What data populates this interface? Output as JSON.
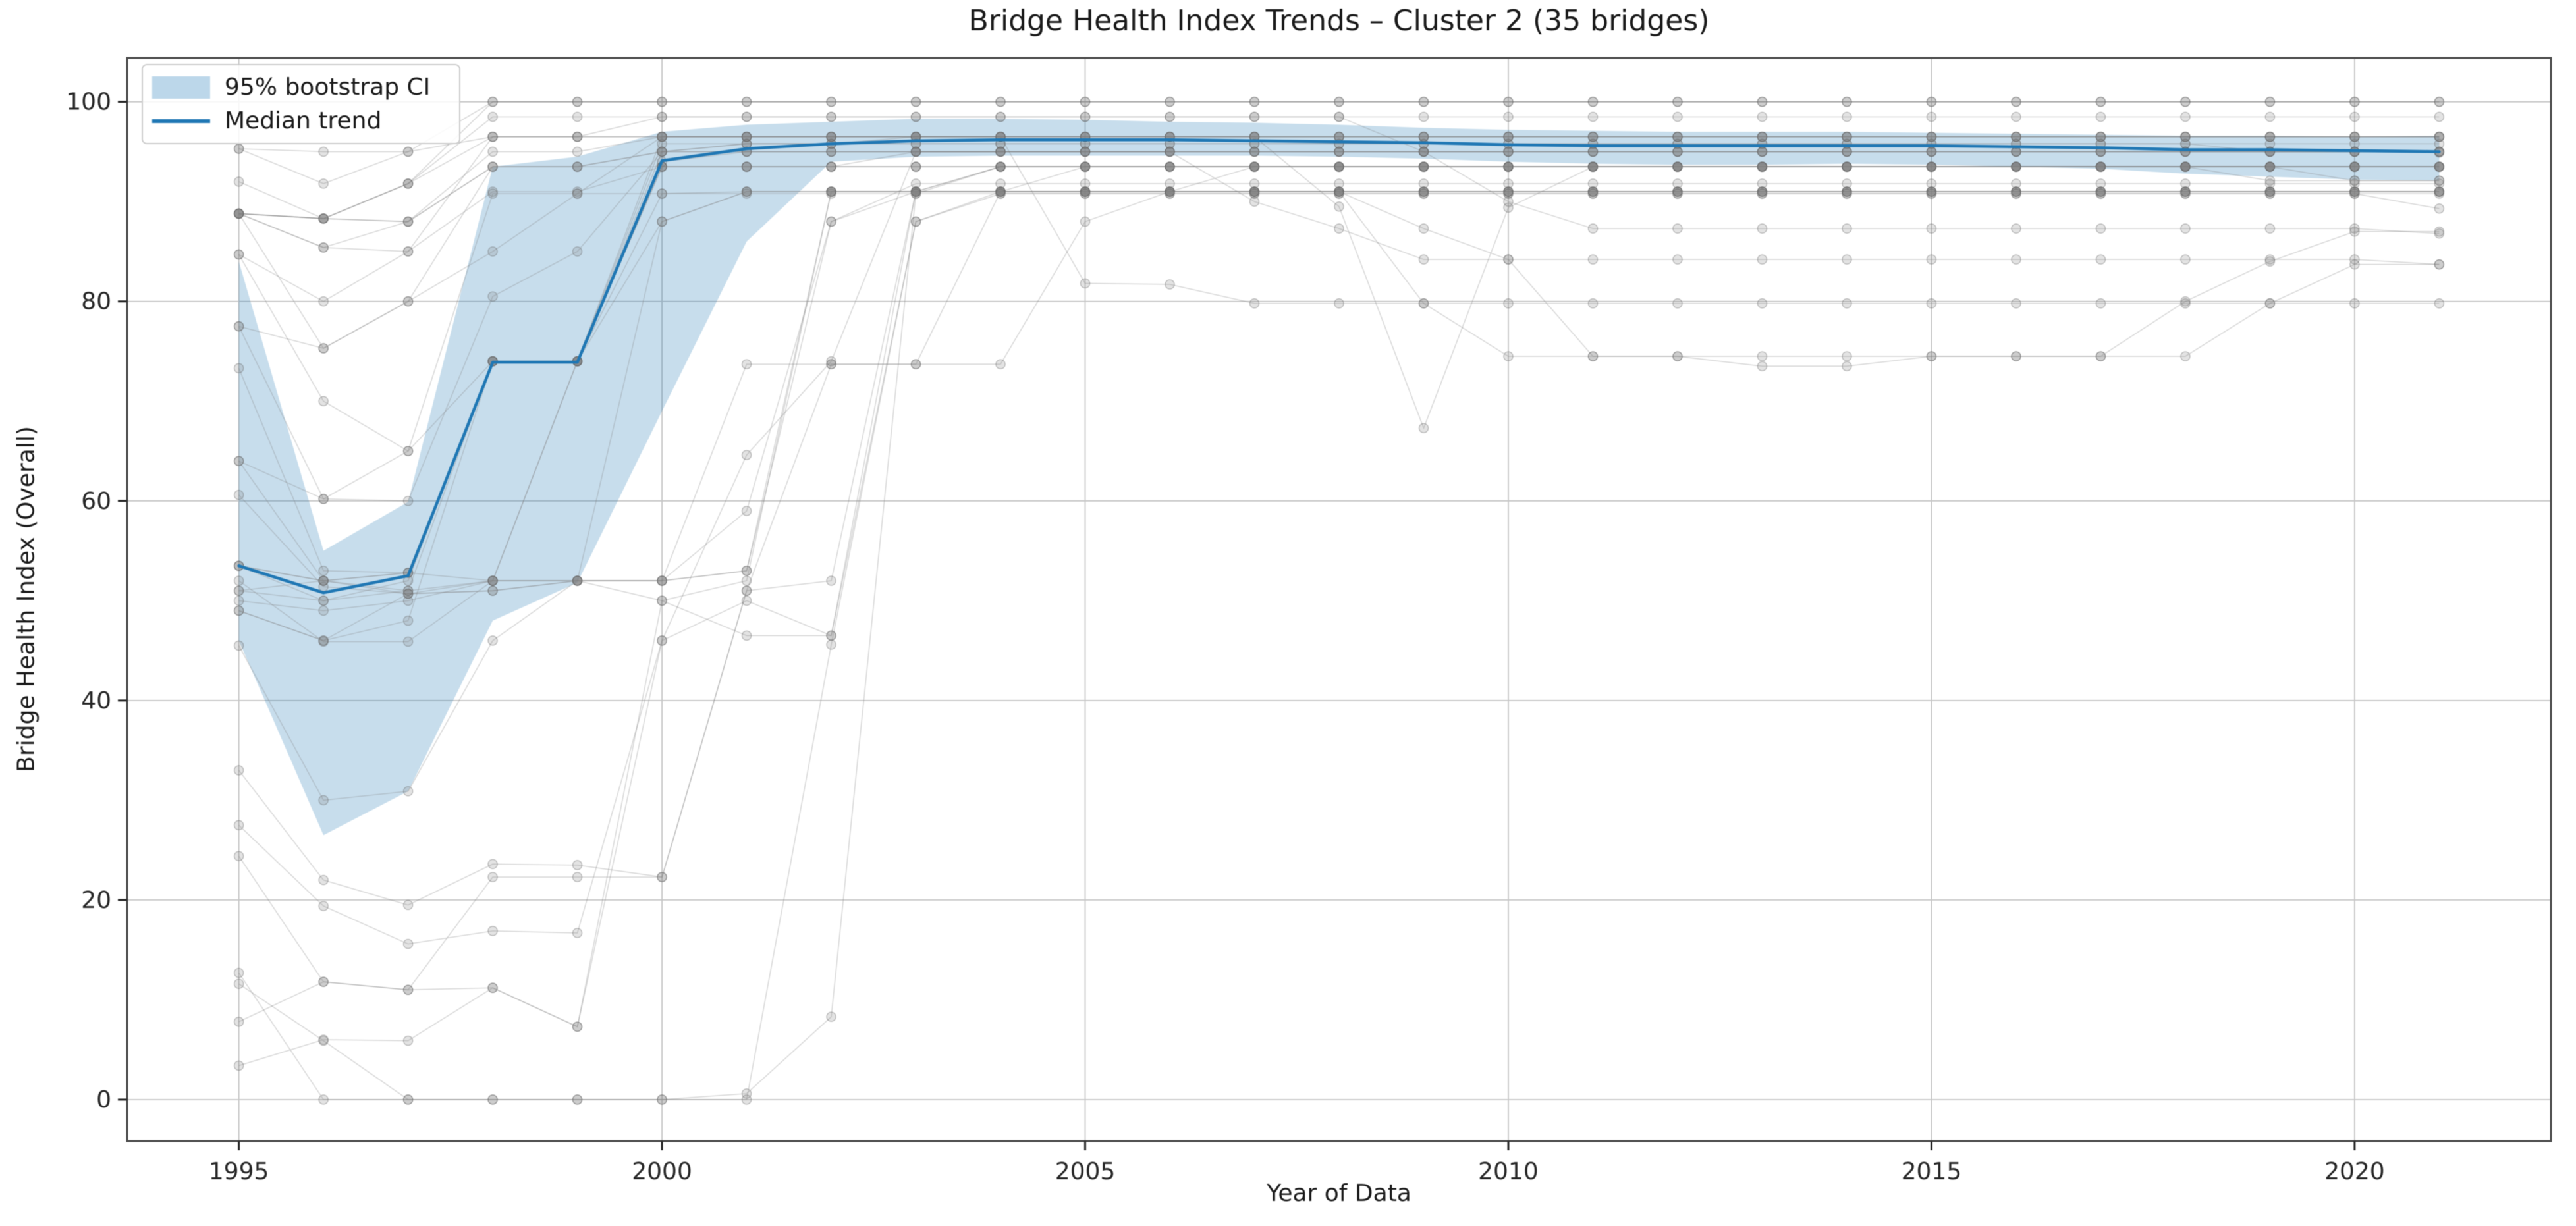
{
  "figure": {
    "title": "Bridge Health Index Trends – Cluster 2 (35 bridges)",
    "xlabel": "Year of Data",
    "ylabel": "Bridge Health Index (Overall)"
  },
  "legend": [
    {
      "label": "95% bootstrap CI",
      "swatch": "ci-patch"
    },
    {
      "label": "Median trend",
      "swatch": "median-line"
    }
  ],
  "colors": {
    "median_line": "#1f77b4",
    "ci_band_fill": "rgba(31,119,180,0.25)",
    "bridge_line": "rgba(128,128,128,0.30)",
    "bridge_marker_fill": "rgba(128,128,128,0.22)",
    "bridge_marker_edge": "rgba(105,105,105,0.40)",
    "grid": "#c6c6c6",
    "spine": "#4d4d4d",
    "text": "#262626"
  },
  "chart_data": {
    "type": "line",
    "title": "Bridge Health Index Trends – Cluster 2 (35 bridges)",
    "xlabel": "Year of Data",
    "ylabel": "Bridge Health Index (Overall)",
    "grid": true,
    "legend_position": "upper left",
    "x_ticks": [
      1995,
      2000,
      2005,
      2010,
      2015,
      2020
    ],
    "x_tick_labels": [
      "1995",
      "2000",
      "2005",
      "2010",
      "2015",
      "2020"
    ],
    "y_ticks": [
      0,
      20,
      40,
      60,
      80,
      100
    ],
    "y_tick_labels": [
      "0",
      "20",
      "40",
      "60",
      "80",
      "100"
    ],
    "x_range": [
      1993.68,
      2022.32
    ],
    "y_range": [
      -4.16,
      104.4
    ],
    "x": [
      1995,
      1996,
      1997,
      1998,
      1999,
      2000,
      2001,
      2002,
      2003,
      2004,
      2005,
      2006,
      2007,
      2008,
      2009,
      2010,
      2011,
      2012,
      2013,
      2014,
      2015,
      2016,
      2017,
      2018,
      2019,
      2020,
      2021
    ],
    "series": [
      {
        "name": "Median trend",
        "values": [
          53.5,
          50.8,
          52.5,
          73.9,
          73.9,
          94.1,
          95.3,
          95.8,
          96.1,
          96.2,
          96.2,
          96.2,
          96.1,
          96.0,
          95.9,
          95.7,
          95.6,
          95.6,
          95.6,
          95.6,
          95.6,
          95.5,
          95.4,
          95.2,
          95.2,
          95.1,
          95.0
        ]
      },
      {
        "name": "95% bootstrap CI lower",
        "values": [
          46.0,
          26.5,
          30.9,
          48.0,
          51.8,
          69.0,
          86.0,
          94.0,
          94.5,
          94.6,
          94.6,
          94.6,
          94.6,
          94.5,
          94.3,
          94.0,
          93.8,
          93.7,
          93.7,
          93.8,
          93.7,
          93.5,
          93.3,
          92.8,
          92.5,
          92.2,
          92.1
        ]
      },
      {
        "name": "95% bootstrap CI upper",
        "values": [
          84.0,
          55.0,
          59.9,
          93.5,
          94.5,
          97.0,
          97.7,
          98.0,
          98.3,
          98.3,
          98.2,
          98.0,
          97.9,
          97.7,
          97.4,
          97.2,
          97.1,
          97.0,
          97.0,
          97.0,
          96.9,
          96.8,
          96.7,
          96.6,
          96.6,
          96.5,
          96.6
        ]
      }
    ],
    "bridges": [
      [
        95.3,
        91.8,
        95,
        100,
        100,
        100,
        100,
        100,
        100,
        100,
        100,
        100,
        100,
        100,
        100,
        100,
        100,
        100,
        100,
        100,
        100,
        100,
        100,
        100,
        100,
        100,
        100
      ],
      [
        92,
        88.3,
        91.8,
        98.5,
        98.5,
        98.5,
        98.5,
        98.5,
        98.5,
        98.5,
        98.5,
        98.5,
        98.5,
        98.5,
        98.5,
        98.5,
        98.5,
        98.5,
        98.5,
        98.5,
        98.5,
        98.5,
        98.5,
        98.5,
        98.5,
        98.5,
        98.5
      ],
      [
        88.8,
        88.3,
        88,
        93.5,
        93.5,
        95,
        95,
        95,
        95,
        95,
        95,
        95,
        95,
        95,
        95,
        95,
        95,
        95,
        95,
        95,
        95,
        95,
        95,
        95,
        95,
        95,
        95
      ],
      [
        88.8,
        85.4,
        85,
        91,
        91,
        93.5,
        93.5,
        93.5,
        93.5,
        93.5,
        93.5,
        93.5,
        93.5,
        93.5,
        93.5,
        93.5,
        93.5,
        93.5,
        93.5,
        93.5,
        93.5,
        93.5,
        93.5,
        93.5,
        93.5,
        93.5,
        93.5
      ],
      [
        88.8,
        75.3,
        80,
        85,
        90.8,
        96.5,
        96.5,
        96.5,
        96.5,
        96.5,
        96.5,
        96.5,
        96.5,
        96.5,
        96.5,
        96.5,
        96.5,
        96.5,
        96.5,
        96.5,
        96.5,
        96.5,
        96.5,
        96.5,
        96.5,
        96.5,
        96.5
      ],
      [
        84.7,
        70,
        65,
        74,
        74,
        90.8,
        91,
        91,
        91,
        91,
        91,
        91,
        91,
        91,
        91,
        91,
        91,
        91,
        91,
        91,
        91,
        91,
        91,
        91,
        91,
        91,
        91
      ],
      [
        77.5,
        60.2,
        60,
        80.5,
        85,
        95,
        95.8,
        95.8,
        96.5,
        96.5,
        96.5,
        96.5,
        96.5,
        96.5,
        96.5,
        96.5,
        96.5,
        96.5,
        96.5,
        96.5,
        96.5,
        96.5,
        96.5,
        96.5,
        96.5,
        96.5,
        96.5
      ],
      [
        73.3,
        53,
        52.8,
        74,
        74,
        93.5,
        93.5,
        93.5,
        93.5,
        93.5,
        93.5,
        93.5,
        93.5,
        93.5,
        93.5,
        93.5,
        93.5,
        93.5,
        93.5,
        93.5,
        93.5,
        93.5,
        93.5,
        93.5,
        93.5,
        92.1,
        92.1
      ],
      [
        64,
        52,
        51,
        52,
        74,
        94,
        95,
        95,
        95,
        95,
        95,
        95,
        95,
        95,
        95,
        95,
        95,
        95,
        95,
        95,
        95,
        95,
        95,
        95,
        95,
        95,
        94.9
      ],
      [
        60.6,
        51.4,
        50.7,
        51,
        52,
        88,
        91,
        91,
        91,
        91,
        91,
        91,
        91,
        91,
        91,
        91,
        91,
        91,
        91,
        91,
        91,
        91,
        91,
        91,
        91,
        91,
        91
      ],
      [
        53.5,
        50,
        52,
        74,
        74,
        95,
        95.8,
        95.8,
        95.8,
        95.8,
        95.8,
        95.8,
        95.8,
        95.8,
        95.8,
        95.8,
        95.8,
        95.8,
        95.8,
        95.8,
        95.8,
        95.8,
        95.8,
        95.8,
        95.8,
        95.8,
        95.8
      ],
      [
        52,
        45.9,
        45.9,
        52,
        52,
        50,
        46.5,
        46.5,
        91,
        93.5,
        93.5,
        93.5,
        93.5,
        93.5,
        93.5,
        93.5,
        93.5,
        93.5,
        93.5,
        93.5,
        93.5,
        93.5,
        93.5,
        93.5,
        93.5,
        93.5,
        93.5
      ],
      [
        51,
        52,
        50.7,
        51,
        52,
        52,
        53,
        91,
        91,
        91,
        91,
        91,
        93.5,
        93.5,
        93.5,
        93.5,
        93.5,
        93.5,
        93.5,
        93.5,
        93.5,
        93.5,
        93.5,
        93.5,
        93.5,
        93.5,
        93.5
      ],
      [
        50,
        49,
        50,
        52,
        52,
        52,
        59,
        88,
        91.8,
        91.8,
        91.8,
        91.8,
        91.8,
        91.8,
        91.8,
        91.8,
        91.8,
        91.8,
        91.8,
        91.8,
        91.8,
        91.8,
        91.8,
        91.8,
        91.8,
        91.8,
        91.8
      ],
      [
        49,
        46,
        48,
        74,
        74,
        93.5,
        93.5,
        93.5,
        95,
        95,
        95,
        95,
        95,
        95,
        95,
        95,
        95,
        95,
        95,
        95,
        95,
        95,
        95,
        95,
        95,
        95,
        95
      ],
      [
        45.5,
        30,
        30.9,
        46,
        52,
        52,
        73.7,
        73.7,
        73.7,
        91,
        93.5,
        93.5,
        93.5,
        93.5,
        93.5,
        93.5,
        93.5,
        93.5,
        93.5,
        93.5,
        93.5,
        93.5,
        93.5,
        93.5,
        93.5,
        93.5,
        93.5
      ],
      [
        33,
        22,
        19.5,
        23.6,
        23.5,
        22.3,
        51,
        73.7,
        73.7,
        73.7,
        88,
        91,
        91,
        91,
        91,
        91,
        91,
        91,
        91,
        91,
        91,
        91,
        91,
        91,
        91,
        91,
        91
      ],
      [
        27.5,
        19.4,
        15.6,
        16.9,
        16.7,
        46,
        50,
        46.5,
        88,
        90.8,
        90.8,
        90.8,
        90.8,
        90.8,
        90.8,
        90.8,
        90.8,
        90.8,
        90.8,
        90.8,
        90.8,
        90.8,
        90.8,
        90.8,
        90.8,
        90.8,
        90.8
      ],
      [
        24.4,
        11.8,
        11,
        11.2,
        7.3,
        50,
        52,
        91,
        91,
        91,
        91,
        91,
        91,
        91,
        91,
        91,
        91,
        91,
        91,
        91,
        91,
        91,
        91,
        91,
        91,
        91,
        91
      ],
      [
        12.7,
        0,
        0,
        0,
        0,
        0,
        0.6,
        8.3,
        90.8,
        93.5,
        93.5,
        93.5,
        93.5,
        93.5,
        93.5,
        93.5,
        93.5,
        93.5,
        93.5,
        93.5,
        93.5,
        93.5,
        93.5,
        93.5,
        93.5,
        93.5,
        93.5
      ],
      [
        11.6,
        5.9,
        0,
        0,
        0,
        0,
        0,
        45.6,
        88,
        91,
        91,
        91,
        91,
        91,
        91,
        91,
        91,
        91,
        91,
        91,
        91,
        91,
        91,
        91,
        91,
        91,
        91
      ],
      [
        7.8,
        11.8,
        11,
        22.3,
        22.3,
        22.3,
        51,
        52,
        91,
        93.5,
        93.5,
        93.5,
        93.5,
        93.5,
        93.5,
        93.5,
        93.5,
        93.5,
        93.5,
        93.5,
        93.5,
        93.5,
        93.5,
        93.5,
        93.5,
        93.5,
        93.5
      ],
      [
        3.4,
        6,
        5.9,
        11.2,
        7.3,
        46,
        64.6,
        74,
        95,
        95,
        95,
        95,
        95,
        95,
        95,
        95,
        95,
        95,
        95,
        95,
        95,
        95,
        95,
        95,
        95,
        95,
        95
      ],
      [
        88.8,
        88.3,
        88,
        95,
        95,
        96.5,
        96.5,
        96.5,
        96.5,
        96.5,
        96.5,
        96.5,
        96.5,
        89.5,
        67.3,
        89.4,
        93.5,
        93.5,
        93.5,
        93.5,
        93.5,
        93.5,
        93.5,
        93.5,
        93.5,
        93.5,
        93.5
      ],
      [
        88.8,
        85.4,
        88,
        93.5,
        93.5,
        95,
        95,
        95,
        95,
        95,
        95,
        95,
        90,
        87.3,
        84.2,
        84.2,
        84.2,
        84.2,
        84.2,
        84.2,
        84.2,
        84.2,
        84.2,
        84.2,
        84.2,
        84.2,
        83.7
      ],
      [
        95.3,
        95,
        95,
        96.5,
        96.5,
        98.5,
        98.5,
        98.5,
        98.5,
        98.5,
        98.5,
        98.5,
        98.5,
        98.5,
        95,
        90,
        87.3,
        87.3,
        87.3,
        87.3,
        87.3,
        87.3,
        87.3,
        87.3,
        87.3,
        87.3,
        86.8
      ],
      [
        88.8,
        88.3,
        91.8,
        96.5,
        96.5,
        96.5,
        96.5,
        96.5,
        96.5,
        96.5,
        81.8,
        81.7,
        79.8,
        79.8,
        79.8,
        79.8,
        79.8,
        79.8,
        79.8,
        79.8,
        79.8,
        79.8,
        79.8,
        79.8,
        79.8,
        79.8,
        79.8
      ],
      [
        53.5,
        52,
        52.8,
        74,
        74,
        88,
        91,
        91,
        91,
        91,
        91,
        91,
        91,
        91,
        79.8,
        74.5,
        74.5,
        74.5,
        73.5,
        73.5,
        74.5,
        74.5,
        74.5,
        80,
        84,
        87,
        87
      ],
      [
        49,
        46,
        50.7,
        52,
        52,
        52,
        53,
        88,
        91,
        91,
        91,
        91,
        91,
        91,
        87.3,
        84.2,
        74.5,
        74.5,
        74.5,
        74.5,
        74.5,
        74.5,
        74.5,
        74.5,
        79.8,
        83.7,
        83.7
      ],
      [
        88.8,
        88.3,
        91.8,
        100,
        100,
        100,
        100,
        100,
        100,
        100,
        100,
        100,
        100,
        100,
        100,
        100,
        100,
        100,
        100,
        100,
        100,
        100,
        100,
        100,
        100,
        100,
        100
      ],
      [
        84.7,
        80,
        85,
        96.5,
        96.5,
        96.5,
        96.5,
        96.5,
        96.5,
        96.5,
        96.5,
        96.5,
        96.5,
        96.5,
        96.5,
        96.5,
        96.5,
        96.5,
        96.5,
        96.5,
        96.5,
        96.5,
        96.5,
        96.5,
        96.5,
        96.5,
        96.5
      ],
      [
        77.5,
        75.3,
        80,
        93.5,
        93.5,
        93.5,
        93.5,
        93.5,
        93.5,
        93.5,
        93.5,
        93.5,
        93.5,
        93.5,
        93.5,
        93.5,
        93.5,
        93.5,
        93.5,
        93.5,
        93.5,
        93.5,
        93.5,
        93.5,
        92.1,
        92.1,
        92.1
      ],
      [
        64,
        60.2,
        65,
        90.8,
        90.8,
        90.8,
        90.8,
        90.8,
        90.8,
        90.8,
        90.8,
        90.8,
        90.8,
        90.8,
        90.8,
        90.8,
        90.8,
        90.8,
        90.8,
        90.8,
        90.8,
        90.8,
        90.8,
        90.8,
        90.8,
        90.8,
        89.3
      ],
      [
        53.5,
        52,
        52.8,
        52,
        74,
        95.8,
        95.8,
        95.8,
        95.8,
        95.8,
        95.8,
        95.8,
        95.8,
        95.8,
        95.8,
        95.8,
        95.8,
        95.8,
        95.8,
        95.8,
        95.8,
        95.8,
        95.8,
        95.8,
        95,
        95,
        95
      ],
      [
        51,
        50,
        51,
        74,
        74,
        96.5,
        96.5,
        96.5,
        96.5,
        96.5,
        96.5,
        96.5,
        96.5,
        96.5,
        96.5,
        96.5,
        96.5,
        96.5,
        96.5,
        96.5,
        96.5,
        96.5,
        96.5,
        96.5,
        96.5,
        96.5,
        96.5
      ]
    ]
  }
}
